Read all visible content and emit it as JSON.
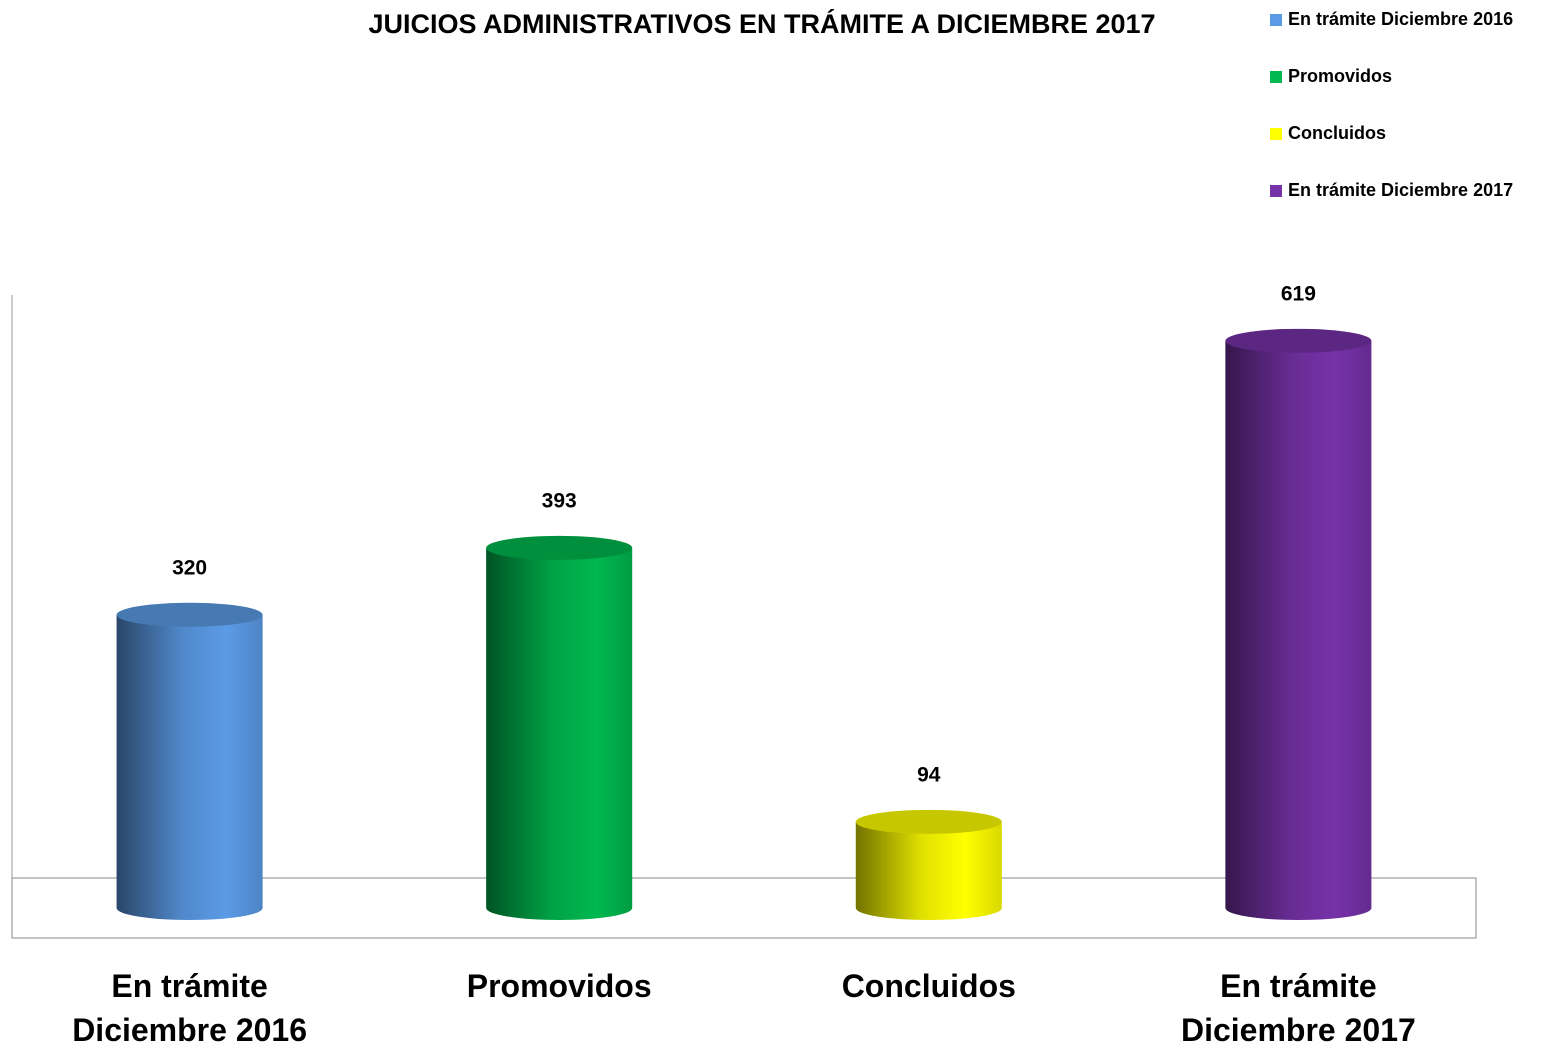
{
  "chart_data": {
    "type": "bar3d",
    "title": "JUICIOS ADMINISTRATIVOS EN TRÁMITE A DICIEMBRE 2017",
    "categories": [
      "En trámite Diciembre 2016",
      "Promovidos",
      "Concluidos",
      "En trámite Diciembre 2017"
    ],
    "series": [
      {
        "name": "En trámite Diciembre 2016",
        "color": "#5b9be6",
        "values": [
          320,
          null,
          null,
          null
        ]
      },
      {
        "name": "Promovidos",
        "color": "#00b84f",
        "values": [
          null,
          393,
          null,
          null
        ]
      },
      {
        "name": "Concluidos",
        "color": "#ffff00",
        "values": [
          null,
          null,
          94,
          null
        ]
      },
      {
        "name": "En trámite Diciembre 2017",
        "color": "#7632a8",
        "values": [
          null,
          null,
          null,
          619
        ]
      }
    ],
    "ylim": [
      0,
      669
    ],
    "legend": "top-right"
  }
}
